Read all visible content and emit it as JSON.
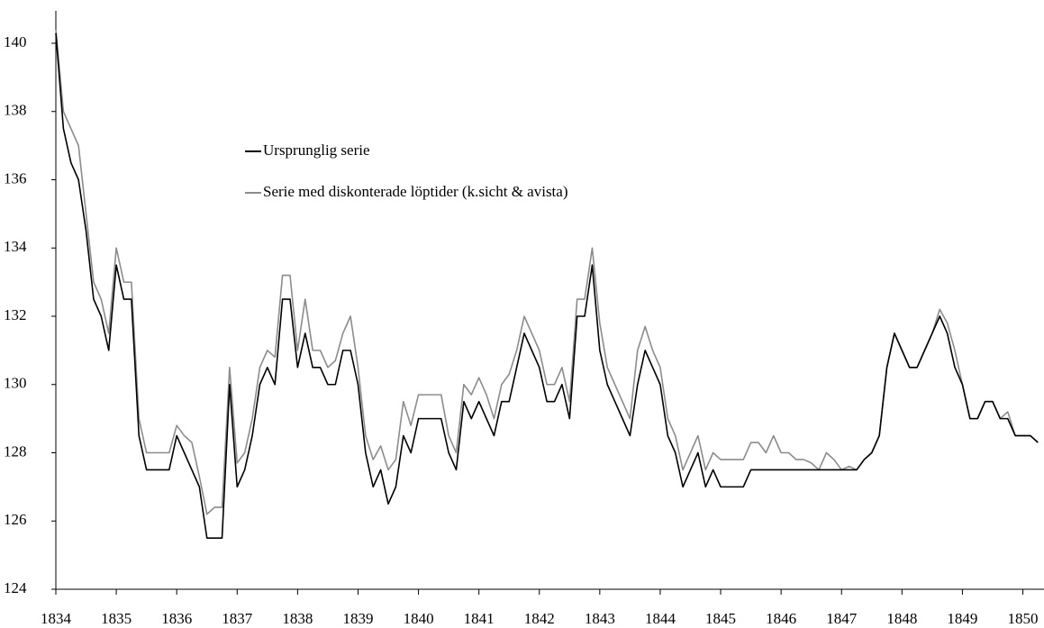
{
  "chart_data": {
    "type": "line",
    "x": [
      1834,
      1834.125,
      1834.25,
      1834.375,
      1834.5,
      1834.625,
      1834.75,
      1834.875,
      1835,
      1835.125,
      1835.25,
      1835.375,
      1835.5,
      1835.625,
      1835.75,
      1835.875,
      1836,
      1836.125,
      1836.25,
      1836.375,
      1836.5,
      1836.625,
      1836.75,
      1836.875,
      1837,
      1837.125,
      1837.25,
      1837.375,
      1837.5,
      1837.625,
      1837.75,
      1837.875,
      1838,
      1838.125,
      1838.25,
      1838.375,
      1838.5,
      1838.625,
      1838.75,
      1838.875,
      1839,
      1839.125,
      1839.25,
      1839.375,
      1839.5,
      1839.625,
      1839.75,
      1839.875,
      1840,
      1840.125,
      1840.25,
      1840.375,
      1840.5,
      1840.625,
      1840.75,
      1840.875,
      1841,
      1841.125,
      1841.25,
      1841.375,
      1841.5,
      1841.625,
      1841.75,
      1841.875,
      1842,
      1842.125,
      1842.25,
      1842.375,
      1842.5,
      1842.625,
      1842.75,
      1842.875,
      1843,
      1843.125,
      1843.25,
      1843.375,
      1843.5,
      1843.625,
      1843.75,
      1843.875,
      1844,
      1844.125,
      1844.25,
      1844.375,
      1844.5,
      1844.625,
      1844.75,
      1844.875,
      1845,
      1845.125,
      1845.25,
      1845.375,
      1845.5,
      1845.625,
      1845.75,
      1845.875,
      1846,
      1846.125,
      1846.25,
      1846.375,
      1846.5,
      1846.625,
      1846.75,
      1846.875,
      1847,
      1847.125,
      1847.25,
      1847.375,
      1847.5,
      1847.625,
      1847.75,
      1847.875,
      1848,
      1848.125,
      1848.25,
      1848.375,
      1848.5,
      1848.625,
      1848.75,
      1848.875,
      1849,
      1849.125,
      1849.25,
      1849.375,
      1849.5,
      1849.625,
      1849.75,
      1849.875,
      1850,
      1850.125,
      1850.25
    ],
    "series": [
      {
        "name": "Ursprunglig serie",
        "color": "#000000",
        "values": [
          140.3,
          137.5,
          136.5,
          136,
          134.5,
          132.5,
          132,
          131,
          133.5,
          132.5,
          132.5,
          128.5,
          127.5,
          127.5,
          127.5,
          127.5,
          128.5,
          128,
          127.5,
          127,
          125.5,
          125.5,
          125.5,
          130,
          127,
          127.5,
          128.5,
          130,
          130.5,
          130,
          132.5,
          132.5,
          130.5,
          131.5,
          130.5,
          130.5,
          130,
          130,
          131,
          131,
          130,
          128,
          127,
          127.5,
          126.5,
          127,
          128.5,
          128,
          129,
          129,
          129,
          129,
          128,
          127.5,
          129.5,
          129,
          129.5,
          129,
          128.5,
          129.5,
          129.5,
          130.5,
          131.5,
          131,
          130.5,
          129.5,
          129.5,
          130,
          129,
          132,
          132,
          133.5,
          131,
          130,
          129.5,
          129,
          128.5,
          130,
          131,
          130.5,
          130,
          128.5,
          128,
          127,
          127.5,
          128,
          127,
          127.5,
          127,
          127,
          127,
          127,
          127.5,
          127.5,
          127.5,
          127.5,
          127.5,
          127.5,
          127.5,
          127.5,
          127.5,
          127.5,
          127.5,
          127.5,
          127.5,
          127.5,
          127.5,
          127.8,
          128,
          128.5,
          130.5,
          131.5,
          131,
          130.5,
          130.5,
          131,
          131.5,
          132,
          131.5,
          130.5,
          130,
          129,
          129,
          129.5,
          129.5,
          129,
          129,
          128.5,
          128.5,
          128.5,
          128.3
        ]
      },
      {
        "name": "Serie med diskonterade löptider (k.sicht & avista)",
        "color": "#8c8c8c",
        "values": [
          140.4,
          138,
          137.5,
          137,
          135,
          133,
          132.5,
          131.5,
          134,
          133,
          133,
          129,
          128,
          128,
          128,
          128,
          128.8,
          128.5,
          128.3,
          127.3,
          126.2,
          126.4,
          126.4,
          130.5,
          127.7,
          128,
          129,
          130.5,
          131,
          130.8,
          133.2,
          133.2,
          131,
          132.5,
          131,
          131,
          130.5,
          130.7,
          131.5,
          132,
          130.5,
          128.5,
          127.8,
          128.2,
          127.5,
          127.8,
          129.5,
          128.8,
          129.7,
          129.7,
          129.7,
          129.7,
          128.5,
          128,
          130,
          129.7,
          130.2,
          129.7,
          129,
          130,
          130.3,
          131,
          132,
          131.5,
          131,
          130,
          130,
          130.5,
          129.5,
          132.5,
          132.5,
          134,
          131.8,
          130.5,
          130,
          129.5,
          129,
          131,
          131.7,
          131,
          130.5,
          129,
          128.5,
          127.5,
          128,
          128.5,
          127.5,
          128,
          127.8,
          127.8,
          127.8,
          127.8,
          128.3,
          128.3,
          128,
          128.5,
          128,
          128,
          127.8,
          127.8,
          127.7,
          127.5,
          128,
          127.8,
          127.5,
          127.6,
          127.5,
          127.8,
          128,
          128.5,
          130.5,
          131.5,
          131,
          130.5,
          130.5,
          131,
          131.5,
          132.2,
          131.8,
          131,
          130,
          129,
          129,
          129.5,
          129.5,
          129,
          129.2,
          128.5,
          128.5,
          128.5,
          128.3
        ]
      }
    ],
    "xlim": [
      1834,
      1850.35
    ],
    "xticks": [
      1834,
      1835,
      1836,
      1837,
      1838,
      1839,
      1840,
      1841,
      1842,
      1843,
      1844,
      1845,
      1846,
      1847,
      1848,
      1849,
      1850
    ],
    "ylim": [
      124,
      140
    ],
    "yticks": [
      124,
      126,
      128,
      130,
      132,
      134,
      136,
      138,
      140
    ],
    "legend": "upper left"
  }
}
